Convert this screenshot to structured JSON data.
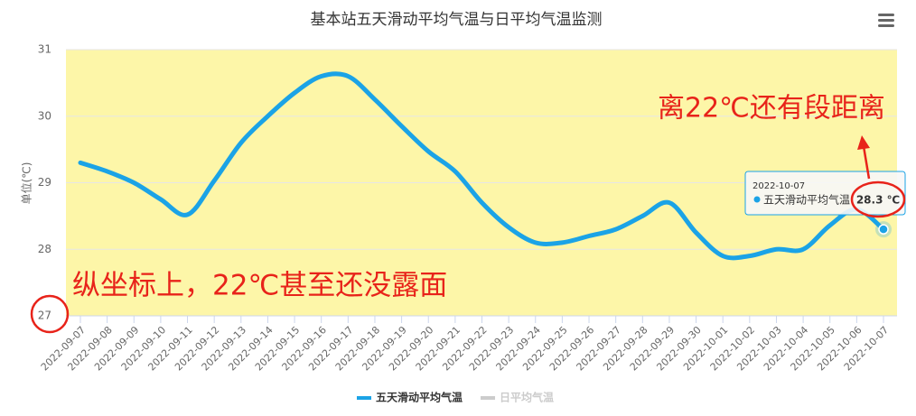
{
  "chart_data": {
    "type": "line",
    "title": "基本站五天滑动平均气温与日平均气温监测",
    "y_label": "单位(℃)",
    "categories": [
      "2022-09-07",
      "2022-09-08",
      "2022-09-09",
      "2022-09-10",
      "2022-09-11",
      "2022-09-12",
      "2022-09-13",
      "2022-09-14",
      "2022-09-15",
      "2022-09-16",
      "2022-09-17",
      "2022-09-18",
      "2022-09-19",
      "2022-09-20",
      "2022-09-21",
      "2022-09-22",
      "2022-09-23",
      "2022-09-24",
      "2022-09-25",
      "2022-09-26",
      "2022-09-27",
      "2022-09-28",
      "2022-09-29",
      "2022-09-30",
      "2022-10-01",
      "2022-10-02",
      "2022-10-03",
      "2022-10-04",
      "2022-10-05",
      "2022-10-06",
      "2022-10-07"
    ],
    "series": [
      {
        "name": "五天滑动平均气温",
        "color": "#1ba3e6",
        "visible": true,
        "values": [
          29.3,
          29.17,
          29.0,
          28.75,
          28.52,
          29.03,
          29.6,
          30.0,
          30.35,
          30.6,
          30.6,
          30.25,
          29.85,
          29.47,
          29.17,
          28.7,
          28.33,
          28.1,
          28.1,
          28.2,
          28.3,
          28.5,
          28.7,
          28.25,
          27.9,
          27.9,
          28.0,
          28.0,
          28.36,
          28.6,
          28.3
        ]
      },
      {
        "name": "日平均气温",
        "color": "#cccccc",
        "visible": false,
        "values": [
          null,
          null,
          null,
          null,
          null,
          null,
          null,
          null,
          null,
          null,
          null,
          null,
          null,
          null,
          null,
          null,
          null,
          null,
          null,
          null,
          null,
          null,
          null,
          null,
          null,
          null,
          null,
          null,
          null,
          null,
          null
        ]
      }
    ],
    "ylim": [
      27,
      31
    ],
    "yticks": [
      27,
      28,
      29,
      30,
      31
    ],
    "grid": true,
    "plot_background": "#fdf6a8",
    "tooltip": {
      "x": "2022-10-07",
      "series": "五天滑动平均气温",
      "value": 28.3,
      "label": "28.3 ℃"
    },
    "annotations": [
      "离22℃还有段距离",
      "纵坐标上，22℃甚至还没露面"
    ]
  }
}
